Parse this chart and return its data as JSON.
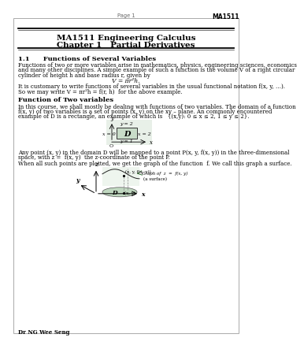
{
  "page_label": "Page 1",
  "course_code": "MA1511",
  "title_line1": "MA1511 Engineering Calculus",
  "title_line2": "Chapter 1   Partial Derivatives",
  "section1": "1.1      Functions of Several Variables",
  "para1a": "Functions of two or more variables arise in mathematics, physics, engineering sciences, economics",
  "para1b": "and many other disciplines. A simple example of such a function is the volume V of a right circular",
  "para1c": "cylinder of height h and base radius r, given by",
  "formula1": "V = πr²h.",
  "para2": "It is customary to write functions of several variables in the usual functional notation f(x, y, …).",
  "para3": "So we may write V = πr²h = f(r, h)  for the above example.",
  "section2": "Function of Two variables",
  "para4a": "In this course, we shall mostly be dealing with functions of two variables. The domain of a function",
  "para4b": "f(x, y) of two variables is a set of points (x, y) on the xy – plane. An commonly encountered",
  "para4c": "example of D is a rectangle, an example of which is   {(x,y): 0 ≤ x ≤ 2, 1 ≤ y ≤ 2}.",
  "para5a": "Any point (x, y) in the domain D will be mapped to a point P(x, y, f(x, y)) in the three-dimensional",
  "para5b": "space, with z =  f(x, y)  the z-coordinate of the point P.",
  "para6": "When all such points are plotted, we get the graph of the function  f. We call this graph a surface.",
  "footer": "Dr NG Wee Seng",
  "bg_color": "#ffffff"
}
